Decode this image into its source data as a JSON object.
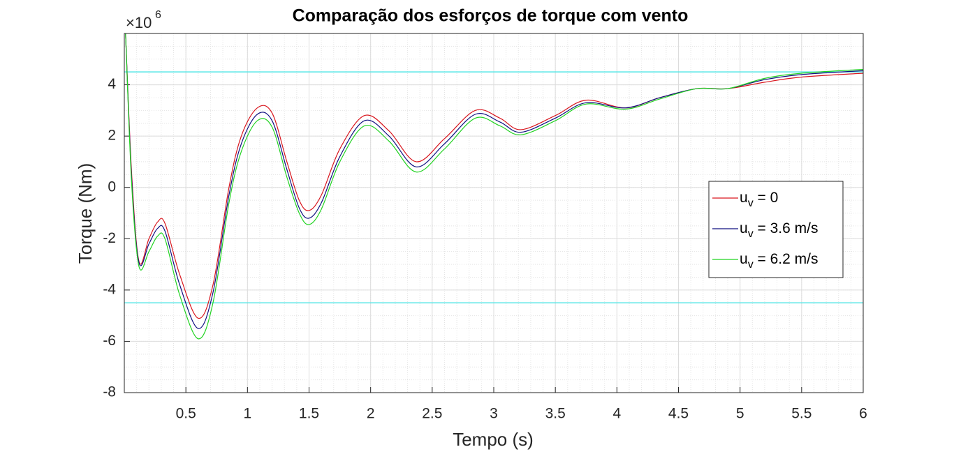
{
  "chart_data": {
    "type": "line",
    "title": "Comparação dos esforços de torque com vento",
    "xlabel": "Tempo (s)",
    "ylabel": "Torque (Nm)",
    "exponent_label": {
      "base": "×10",
      "power": "6"
    },
    "x": [
      0.01,
      0.06,
      0.12,
      0.2,
      0.27,
      0.33,
      0.45,
      0.6,
      0.72,
      0.85,
      0.95,
      1.08,
      1.2,
      1.32,
      1.42,
      1.5,
      1.6,
      1.75,
      1.95,
      2.15,
      2.37,
      2.6,
      2.85,
      3.05,
      3.22,
      3.5,
      3.75,
      4.07,
      4.35,
      4.65,
      4.9,
      5.2,
      5.5,
      6
    ],
    "series": [
      {
        "name": "uv = 0",
        "color": "#d9161e",
        "values": [
          6,
          0.5,
          -2.9,
          -2.0,
          -1.35,
          -1.4,
          -3.4,
          -5.1,
          -3.8,
          0,
          2.0,
          3.1,
          2.9,
          1.0,
          -0.5,
          -0.9,
          -0.3,
          1.5,
          2.8,
          2.2,
          1.0,
          1.9,
          3.0,
          2.7,
          2.25,
          2.8,
          3.4,
          3.1,
          3.5,
          3.85,
          3.85,
          4.1,
          4.3,
          4.45
        ]
      },
      {
        "name": "uv = 3.6 m/s",
        "color": "#101080",
        "values": [
          6,
          0.3,
          -2.95,
          -2.2,
          -1.6,
          -1.7,
          -3.8,
          -5.5,
          -4.1,
          -0.3,
          1.7,
          2.85,
          2.6,
          0.7,
          -0.8,
          -1.2,
          -0.6,
          1.2,
          2.6,
          2.0,
          0.8,
          1.7,
          2.85,
          2.55,
          2.15,
          2.7,
          3.3,
          3.1,
          3.5,
          3.85,
          3.85,
          4.2,
          4.4,
          4.55
        ]
      },
      {
        "name": "uv = 6.2 m/s",
        "color": "#22d322",
        "values": [
          6,
          0.1,
          -3.1,
          -2.5,
          -1.9,
          -2.0,
          -4.2,
          -5.9,
          -4.5,
          -0.6,
          1.4,
          2.6,
          2.35,
          0.4,
          -1.0,
          -1.45,
          -0.85,
          1.0,
          2.4,
          1.8,
          0.6,
          1.5,
          2.7,
          2.4,
          2.05,
          2.6,
          3.25,
          3.05,
          3.45,
          3.85,
          3.85,
          4.25,
          4.45,
          4.6
        ]
      }
    ],
    "reference_lines": {
      "values": [
        4.5,
        -4.5
      ],
      "color": "#55e6e6"
    },
    "xlim": [
      0,
      6
    ],
    "ylim": [
      -8,
      6
    ],
    "xticks": [
      0.5,
      1,
      1.5,
      2,
      2.5,
      3,
      3.5,
      4,
      4.5,
      5,
      5.5,
      6
    ],
    "yticks": [
      -8,
      -6,
      -4,
      -2,
      0,
      2,
      4
    ],
    "grid": true,
    "minor_grid": true,
    "legend": "east"
  }
}
